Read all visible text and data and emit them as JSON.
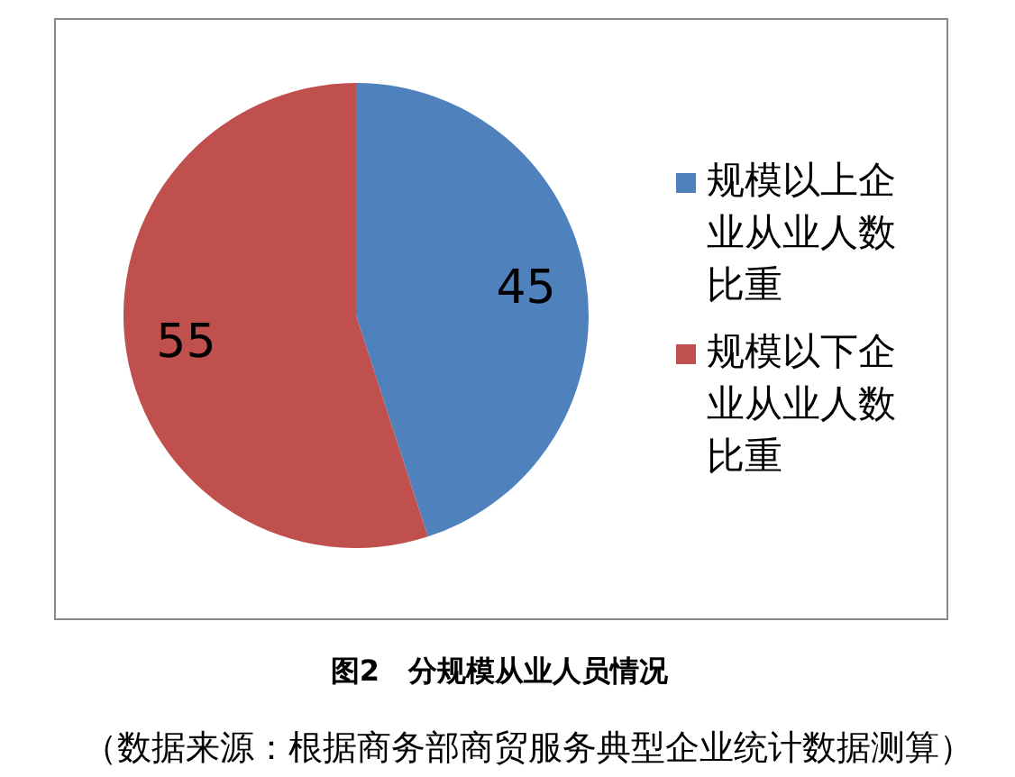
{
  "chart_data": {
    "type": "pie",
    "title": "图2　分规模从业人员情况",
    "categories": [
      "规模以上企业从业人数比重",
      "规模以下企业从业人数比重"
    ],
    "values": [
      45,
      55
    ],
    "colors": [
      "#4f81bd",
      "#c0504d"
    ],
    "data_labels": true,
    "legend": "right",
    "annotations": [
      "（数据来源：根据商务部商贸服务典型企业统计数据测算）"
    ]
  }
}
